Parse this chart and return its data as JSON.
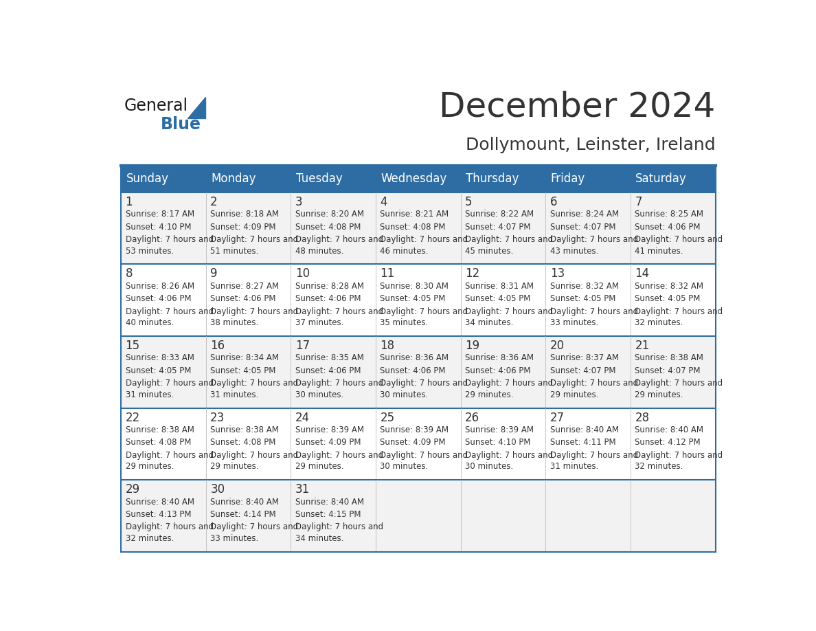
{
  "title": "December 2024",
  "subtitle": "Dollymount, Leinster, Ireland",
  "header_color": "#2E6DA4",
  "header_text_color": "#FFFFFF",
  "day_names": [
    "Sunday",
    "Monday",
    "Tuesday",
    "Wednesday",
    "Thursday",
    "Friday",
    "Saturday"
  ],
  "bg_color": "#FFFFFF",
  "cell_bg_even": "#F2F2F2",
  "cell_bg_odd": "#FFFFFF",
  "grid_color": "#2E6DA4",
  "day_num_color": "#333333",
  "cell_text_color": "#333333",
  "weeks": [
    [
      {
        "day": 1,
        "sunrise": "8:17 AM",
        "sunset": "4:10 PM",
        "daylight": "7 hours and 53 minutes."
      },
      {
        "day": 2,
        "sunrise": "8:18 AM",
        "sunset": "4:09 PM",
        "daylight": "7 hours and 51 minutes."
      },
      {
        "day": 3,
        "sunrise": "8:20 AM",
        "sunset": "4:08 PM",
        "daylight": "7 hours and 48 minutes."
      },
      {
        "day": 4,
        "sunrise": "8:21 AM",
        "sunset": "4:08 PM",
        "daylight": "7 hours and 46 minutes."
      },
      {
        "day": 5,
        "sunrise": "8:22 AM",
        "sunset": "4:07 PM",
        "daylight": "7 hours and 45 minutes."
      },
      {
        "day": 6,
        "sunrise": "8:24 AM",
        "sunset": "4:07 PM",
        "daylight": "7 hours and 43 minutes."
      },
      {
        "day": 7,
        "sunrise": "8:25 AM",
        "sunset": "4:06 PM",
        "daylight": "7 hours and 41 minutes."
      }
    ],
    [
      {
        "day": 8,
        "sunrise": "8:26 AM",
        "sunset": "4:06 PM",
        "daylight": "7 hours and 40 minutes."
      },
      {
        "day": 9,
        "sunrise": "8:27 AM",
        "sunset": "4:06 PM",
        "daylight": "7 hours and 38 minutes."
      },
      {
        "day": 10,
        "sunrise": "8:28 AM",
        "sunset": "4:06 PM",
        "daylight": "7 hours and 37 minutes."
      },
      {
        "day": 11,
        "sunrise": "8:30 AM",
        "sunset": "4:05 PM",
        "daylight": "7 hours and 35 minutes."
      },
      {
        "day": 12,
        "sunrise": "8:31 AM",
        "sunset": "4:05 PM",
        "daylight": "7 hours and 34 minutes."
      },
      {
        "day": 13,
        "sunrise": "8:32 AM",
        "sunset": "4:05 PM",
        "daylight": "7 hours and 33 minutes."
      },
      {
        "day": 14,
        "sunrise": "8:32 AM",
        "sunset": "4:05 PM",
        "daylight": "7 hours and 32 minutes."
      }
    ],
    [
      {
        "day": 15,
        "sunrise": "8:33 AM",
        "sunset": "4:05 PM",
        "daylight": "7 hours and 31 minutes."
      },
      {
        "day": 16,
        "sunrise": "8:34 AM",
        "sunset": "4:05 PM",
        "daylight": "7 hours and 31 minutes."
      },
      {
        "day": 17,
        "sunrise": "8:35 AM",
        "sunset": "4:06 PM",
        "daylight": "7 hours and 30 minutes."
      },
      {
        "day": 18,
        "sunrise": "8:36 AM",
        "sunset": "4:06 PM",
        "daylight": "7 hours and 30 minutes."
      },
      {
        "day": 19,
        "sunrise": "8:36 AM",
        "sunset": "4:06 PM",
        "daylight": "7 hours and 29 minutes."
      },
      {
        "day": 20,
        "sunrise": "8:37 AM",
        "sunset": "4:07 PM",
        "daylight": "7 hours and 29 minutes."
      },
      {
        "day": 21,
        "sunrise": "8:38 AM",
        "sunset": "4:07 PM",
        "daylight": "7 hours and 29 minutes."
      }
    ],
    [
      {
        "day": 22,
        "sunrise": "8:38 AM",
        "sunset": "4:08 PM",
        "daylight": "7 hours and 29 minutes."
      },
      {
        "day": 23,
        "sunrise": "8:38 AM",
        "sunset": "4:08 PM",
        "daylight": "7 hours and 29 minutes."
      },
      {
        "day": 24,
        "sunrise": "8:39 AM",
        "sunset": "4:09 PM",
        "daylight": "7 hours and 29 minutes."
      },
      {
        "day": 25,
        "sunrise": "8:39 AM",
        "sunset": "4:09 PM",
        "daylight": "7 hours and 30 minutes."
      },
      {
        "day": 26,
        "sunrise": "8:39 AM",
        "sunset": "4:10 PM",
        "daylight": "7 hours and 30 minutes."
      },
      {
        "day": 27,
        "sunrise": "8:40 AM",
        "sunset": "4:11 PM",
        "daylight": "7 hours and 31 minutes."
      },
      {
        "day": 28,
        "sunrise": "8:40 AM",
        "sunset": "4:12 PM",
        "daylight": "7 hours and 32 minutes."
      }
    ],
    [
      {
        "day": 29,
        "sunrise": "8:40 AM",
        "sunset": "4:13 PM",
        "daylight": "7 hours and 32 minutes."
      },
      {
        "day": 30,
        "sunrise": "8:40 AM",
        "sunset": "4:14 PM",
        "daylight": "7 hours and 33 minutes."
      },
      {
        "day": 31,
        "sunrise": "8:40 AM",
        "sunset": "4:15 PM",
        "daylight": "7 hours and 34 minutes."
      },
      null,
      null,
      null,
      null
    ]
  ],
  "logo_text_general": "General",
  "logo_text_blue": "Blue",
  "logo_color_general": "#1A1A1A",
  "logo_color_blue": "#2E6DA4",
  "logo_triangle_color": "#2E6DA4"
}
